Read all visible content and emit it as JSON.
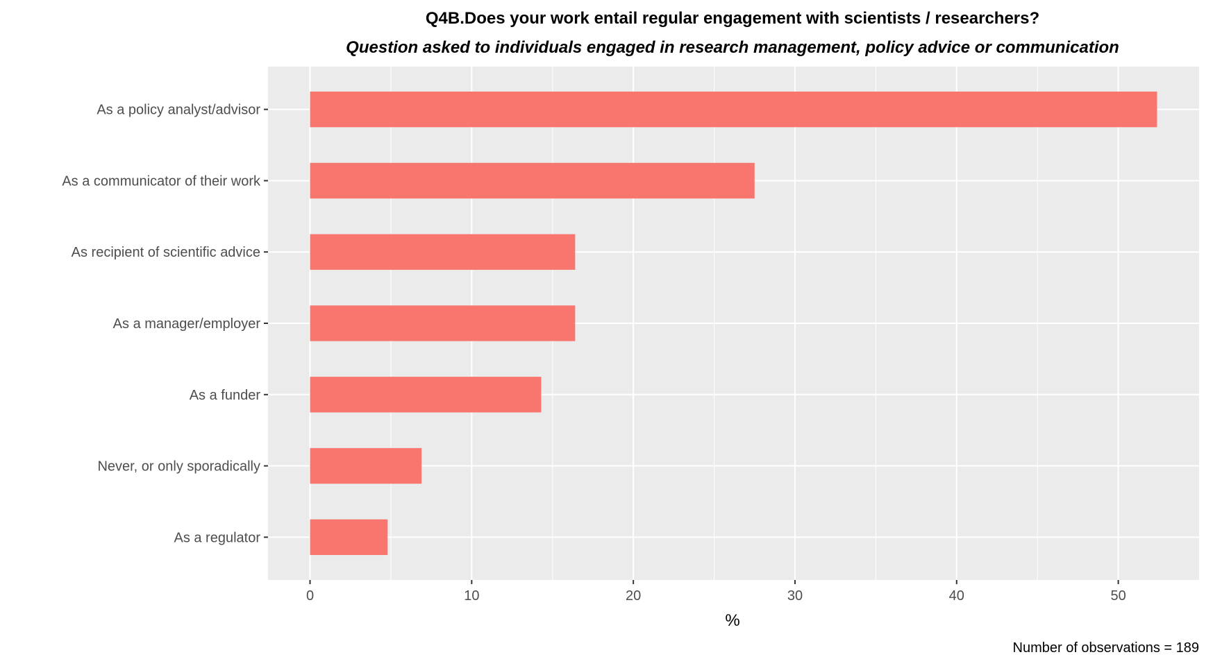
{
  "chart_data": {
    "type": "bar",
    "orientation": "horizontal",
    "title": "Q4B.Does your work entail regular engagement with scientists / researchers?",
    "subtitle": "Question asked to individuals engaged in research management, policy advice or communication",
    "xlabel": "%",
    "ylabel": "",
    "categories": [
      "As a policy analyst/advisor",
      "As a communicator of their work",
      "As recipient of scientific advice",
      "As a manager/employer",
      "As a funder ",
      "Never, or only sporadically",
      "As a regulator"
    ],
    "values": [
      52.4,
      27.5,
      16.4,
      16.4,
      14.3,
      6.9,
      4.8
    ],
    "xlim": [
      -2.6,
      55
    ],
    "x_ticks": [
      0,
      10,
      20,
      30,
      40,
      50
    ],
    "x_tick_labels": [
      "0",
      "10",
      "20",
      "30",
      "40",
      "50"
    ],
    "grid": true,
    "legend": "none",
    "caption": "Number of observations = 189",
    "colors": {
      "bar": "#F8766D",
      "panel": "#EBEBEB",
      "grid": "#FFFFFF",
      "tick_text": "#4D4D4D",
      "tick_mark": "#333333"
    }
  }
}
